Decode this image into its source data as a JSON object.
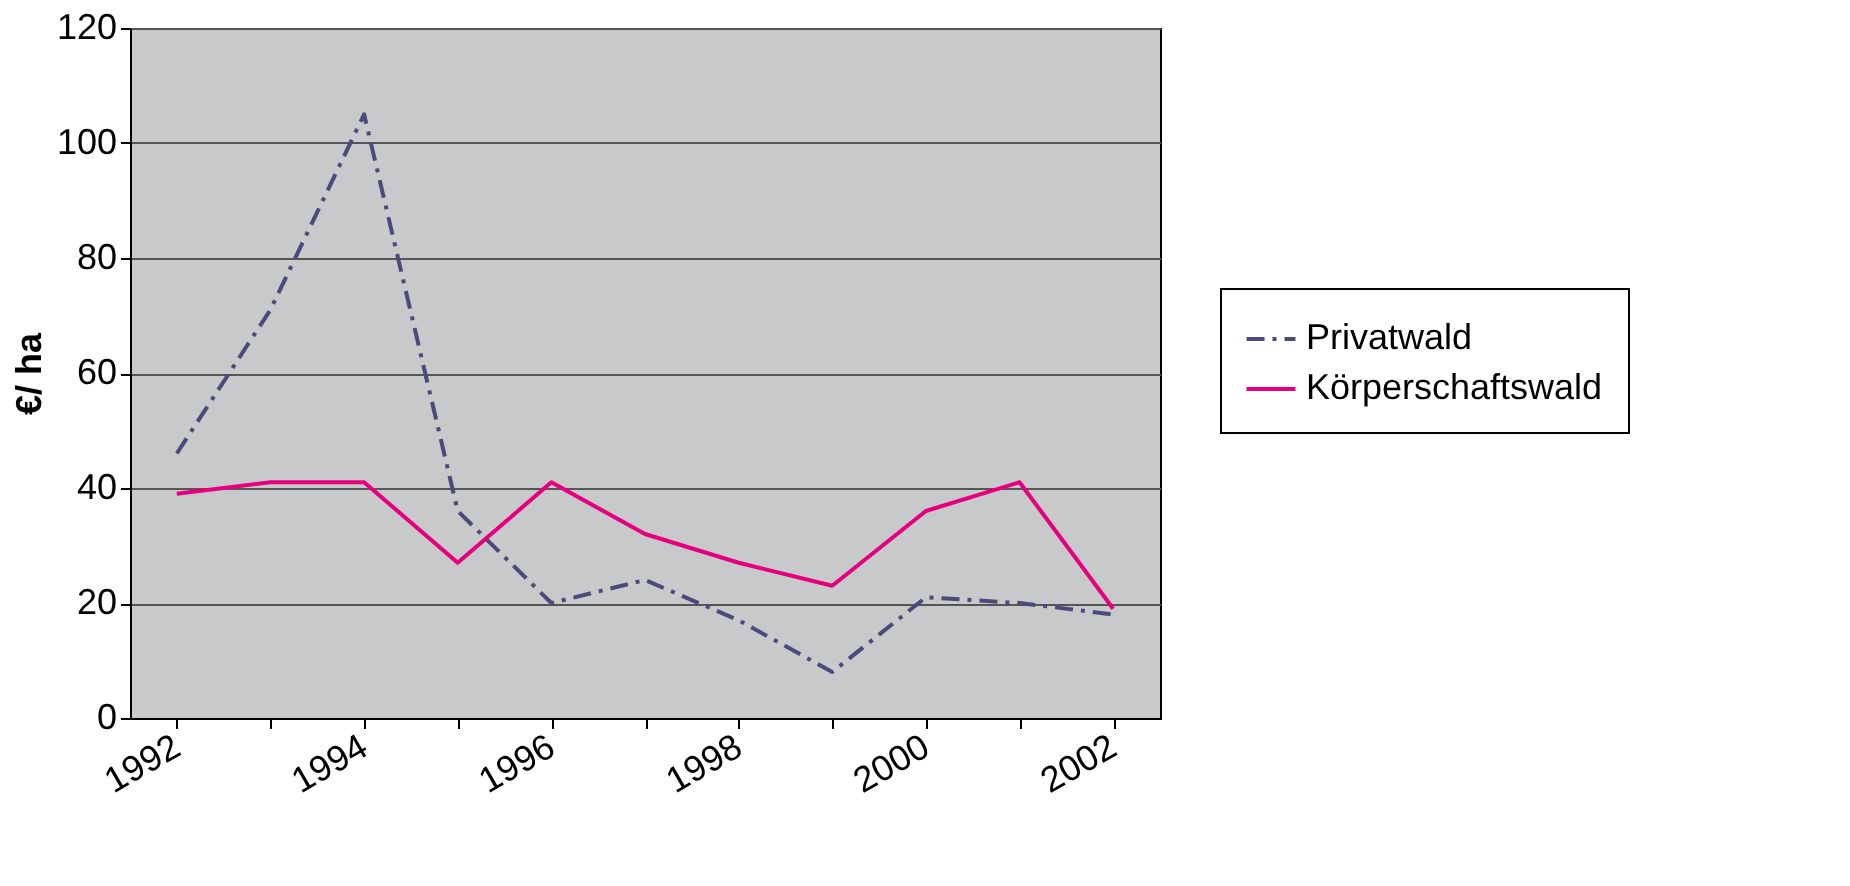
{
  "chart_data": {
    "type": "line",
    "ylabel": "€/ ha",
    "categories": [
      "1992",
      null,
      "1994",
      null,
      "1996",
      null,
      "1998",
      null,
      "2000",
      null,
      "2002"
    ],
    "series": [
      {
        "name": "Privatwald",
        "color": "#4b4a7a",
        "line_style": "dashdot",
        "values": [
          46,
          71,
          105,
          36,
          20,
          24,
          17,
          8,
          21,
          20,
          18
        ]
      },
      {
        "name": "Körperschaftswald",
        "color": "#e6007e",
        "line_style": "solid",
        "values": [
          39,
          41,
          41,
          27,
          41,
          32,
          27,
          23,
          36,
          41,
          19
        ]
      }
    ],
    "ylim": [
      0,
      120
    ],
    "yticks": [
      0,
      20,
      40,
      60,
      80,
      100,
      120
    ],
    "grid": "y",
    "legend": "right",
    "marker": "none"
  }
}
